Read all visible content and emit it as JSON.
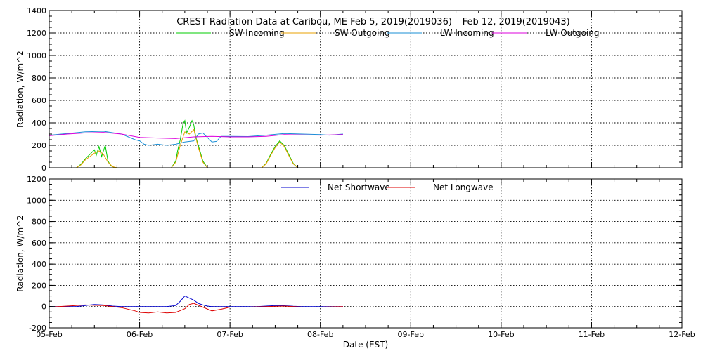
{
  "chart_data": {
    "type": "line",
    "title": "CREST Radiation Data at Caribou, ME   Feb  5, 2019(2019036) – Feb 12, 2019(2019043)",
    "xlabel": "Date (EST)",
    "x_tick_labels": [
      "05-Feb",
      "06-Feb",
      "07-Feb",
      "08-Feb",
      "09-Feb",
      "10-Feb",
      "11-Feb",
      "12-Feb"
    ],
    "xlim": [
      0,
      7
    ],
    "panels": [
      {
        "ylabel": "Radiation, W/m^2",
        "ylim": [
          0,
          1400
        ],
        "yticks": [
          0,
          200,
          400,
          600,
          800,
          1000,
          1200,
          1400
        ],
        "grid": true,
        "legend_position": "top-center",
        "series": [
          {
            "name": "SW Incoming",
            "color": "#00cc00",
            "x": [
              0.3,
              0.35,
              0.4,
              0.45,
              0.5,
              0.52,
              0.55,
              0.58,
              0.6,
              0.62,
              0.65,
              0.68,
              0.7,
              0.72,
              0.75,
              1.35,
              1.4,
              1.42,
              1.45,
              1.48,
              1.5,
              1.52,
              1.55,
              1.58,
              1.6,
              1.62,
              1.65,
              1.7,
              1.75,
              2.35,
              2.4,
              2.45,
              2.5,
              2.55,
              2.6,
              2.65,
              2.7,
              2.75
            ],
            "y": [
              0,
              30,
              80,
              120,
              160,
              110,
              190,
              100,
              150,
              200,
              60,
              20,
              10,
              5,
              0,
              0,
              60,
              150,
              250,
              390,
              420,
              310,
              360,
              420,
              380,
              280,
              200,
              60,
              0,
              0,
              40,
              120,
              190,
              240,
              200,
              120,
              40,
              0
            ]
          },
          {
            "name": "SW Outgoing",
            "color": "#e8a000",
            "x": [
              0.3,
              0.35,
              0.4,
              0.45,
              0.5,
              0.55,
              0.6,
              0.65,
              0.7,
              0.75,
              1.35,
              1.4,
              1.45,
              1.5,
              1.55,
              1.6,
              1.65,
              1.7,
              1.75,
              2.35,
              2.4,
              2.45,
              2.5,
              2.55,
              2.6,
              2.65,
              2.7,
              2.75
            ],
            "y": [
              0,
              25,
              70,
              100,
              130,
              150,
              120,
              50,
              10,
              0,
              0,
              50,
              200,
              320,
              300,
              340,
              180,
              50,
              0,
              0,
              35,
              110,
              180,
              230,
              190,
              110,
              35,
              0
            ]
          },
          {
            "name": "LW Incoming",
            "color": "#1a8fd6",
            "x": [
              0,
              0.2,
              0.4,
              0.6,
              0.8,
              0.95,
              1.0,
              1.05,
              1.1,
              1.2,
              1.3,
              1.4,
              1.5,
              1.6,
              1.65,
              1.7,
              1.75,
              1.8,
              1.85,
              1.9,
              2.0,
              2.2,
              2.4,
              2.6,
              2.8,
              3.0,
              3.1,
              3.25
            ],
            "y": [
              290,
              305,
              320,
              325,
              300,
              250,
              240,
              210,
              200,
              210,
              200,
              210,
              230,
              240,
              300,
              310,
              270,
              230,
              235,
              280,
              280,
              278,
              290,
              305,
              300,
              295,
              290,
              300
            ]
          },
          {
            "name": "LW Outgoing",
            "color": "#dd00dd",
            "x": [
              0,
              0.2,
              0.4,
              0.6,
              0.8,
              1.0,
              1.2,
              1.4,
              1.6,
              1.8,
              2.0,
              2.2,
              2.4,
              2.6,
              2.8,
              3.0,
              3.25
            ],
            "y": [
              285,
              300,
              310,
              315,
              300,
              270,
              265,
              260,
              275,
              280,
              275,
              275,
              280,
              295,
              292,
              290,
              295
            ]
          }
        ]
      },
      {
        "ylabel": "Radiation, W/m^2",
        "ylim": [
          -200,
          1200
        ],
        "yticks": [
          -200,
          0,
          200,
          400,
          600,
          800,
          1000,
          1200
        ],
        "grid": true,
        "legend_position": "top-center",
        "series": [
          {
            "name": "Net Shortwave",
            "color": "#0000cc",
            "x": [
              0,
              0.3,
              0.4,
              0.5,
              0.6,
              0.7,
              0.8,
              1.0,
              1.3,
              1.4,
              1.45,
              1.5,
              1.55,
              1.6,
              1.65,
              1.7,
              1.75,
              1.8,
              2.3,
              2.4,
              2.5,
              2.6,
              2.7,
              2.8,
              3.25
            ],
            "y": [
              0,
              0,
              10,
              20,
              15,
              5,
              0,
              0,
              0,
              10,
              50,
              100,
              80,
              60,
              30,
              15,
              5,
              0,
              0,
              5,
              10,
              8,
              3,
              0,
              0
            ]
          },
          {
            "name": "Net Longwave",
            "color": "#dd0000",
            "x": [
              0,
              0.2,
              0.4,
              0.6,
              0.8,
              0.95,
              1.0,
              1.1,
              1.2,
              1.3,
              1.4,
              1.5,
              1.55,
              1.6,
              1.7,
              1.8,
              1.9,
              2.0,
              2.2,
              2.4,
              2.6,
              2.8,
              3.0,
              3.25
            ],
            "y": [
              -5,
              5,
              15,
              10,
              -10,
              -40,
              -55,
              -60,
              -50,
              -60,
              -55,
              -20,
              20,
              30,
              -5,
              -40,
              -25,
              -5,
              -5,
              0,
              5,
              -5,
              -5,
              0
            ]
          }
        ]
      }
    ]
  }
}
